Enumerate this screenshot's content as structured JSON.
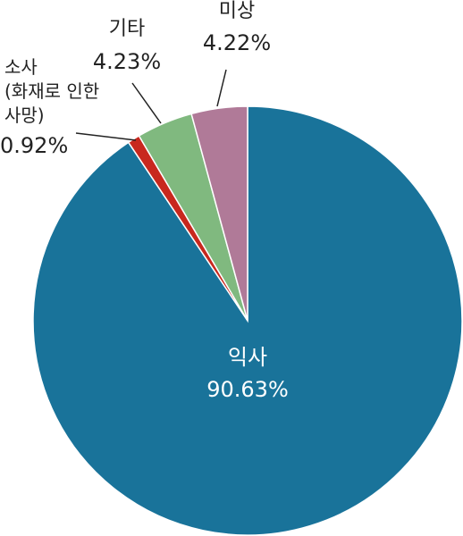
{
  "chart_data": {
    "type": "pie",
    "categories": [
      "익사",
      "소사\n(화재로 인한\n사망)",
      "기타",
      "미상"
    ],
    "values": [
      90.63,
      0.92,
      4.23,
      4.22
    ],
    "value_labels": [
      "90.63%",
      "0.92%",
      "4.23%",
      "4.22%"
    ],
    "colors": [
      "#19739a",
      "#c8281e",
      "#80b97f",
      "#b07a98"
    ]
  }
}
